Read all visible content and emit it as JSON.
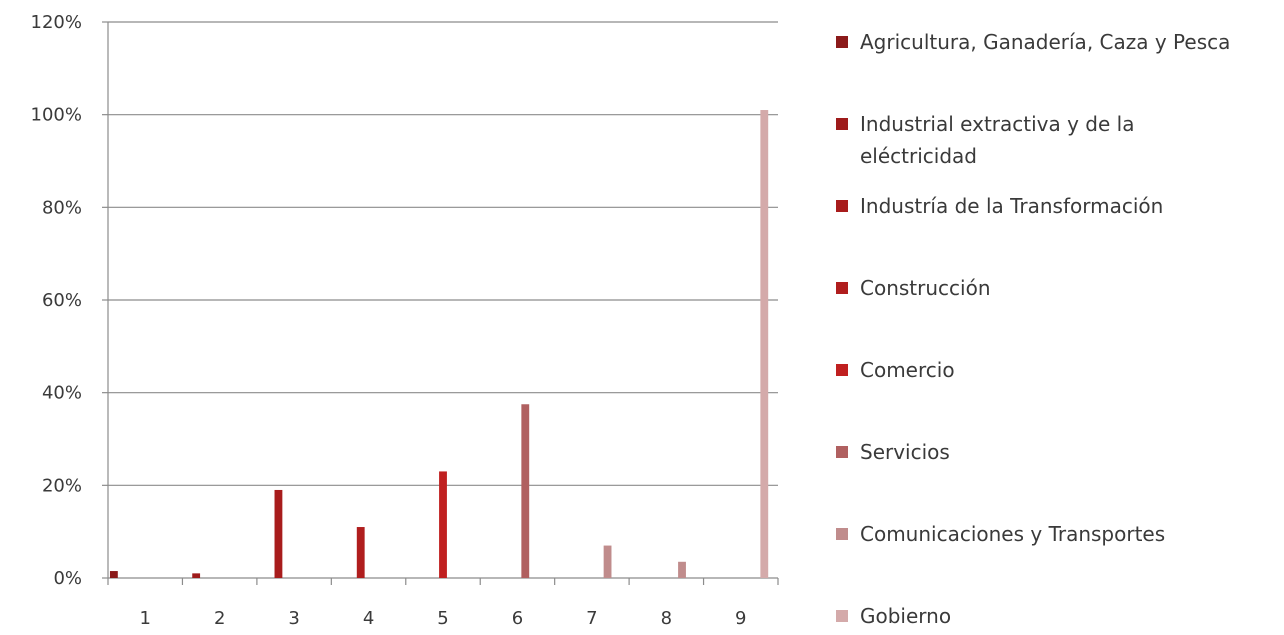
{
  "chart_data": {
    "type": "bar",
    "title": "",
    "xlabel": "",
    "ylabel": "",
    "ylim": [
      0,
      1.2
    ],
    "y_ticks": [
      "0%",
      "20%",
      "40%",
      "60%",
      "80%",
      "100%",
      "120%"
    ],
    "y_tick_values": [
      0,
      0.2,
      0.4,
      0.6,
      0.8,
      1.0,
      1.2
    ],
    "categories": [
      "1",
      "2",
      "3",
      "4",
      "5",
      "6",
      "7",
      "8",
      "9"
    ],
    "grid": true,
    "legend_position": "right",
    "series": [
      {
        "name": "Agricultura, Ganadería, Caza y Pesca",
        "color": "#8b1a1a",
        "values": [
          0.015,
          0,
          0,
          0,
          0,
          0,
          0,
          0,
          0
        ]
      },
      {
        "name": "Industrial extractiva y de la eléctricidad",
        "color": "#9e1b1b",
        "values": [
          0,
          0.01,
          0,
          0,
          0,
          0,
          0,
          0,
          0
        ]
      },
      {
        "name": "Industría de la Transformación",
        "color": "#a81c1c",
        "values": [
          0,
          0,
          0.19,
          0,
          0,
          0,
          0,
          0,
          0
        ]
      },
      {
        "name": "Construcción",
        "color": "#b01e1e",
        "values": [
          0,
          0,
          0,
          0.11,
          0,
          0,
          0,
          0,
          0
        ]
      },
      {
        "name": "Comercio",
        "color": "#c02020",
        "values": [
          0,
          0,
          0,
          0,
          0.23,
          0,
          0,
          0,
          0
        ]
      },
      {
        "name": "Servicios",
        "color": "#b06060",
        "values": [
          0,
          0,
          0,
          0,
          0,
          0.375,
          0,
          0,
          0
        ]
      },
      {
        "name": "Comunicaciones y Transportes",
        "color": "#c08c8c",
        "values": [
          0,
          0,
          0,
          0,
          0,
          0,
          0.07,
          0.035,
          0
        ]
      },
      {
        "name": "Gobierno",
        "color": "#d4aaaa",
        "values": [
          0,
          0,
          0,
          0,
          0,
          0,
          0,
          0,
          1.01
        ]
      }
    ],
    "legend_lines": [
      [
        "Agricultura, Ganadería, Caza y Pesca"
      ],
      [
        "Industrial extractiva y de la",
        "eléctricidad"
      ],
      [
        "Industría de la Transformación"
      ],
      [
        "Construcción"
      ],
      [
        "Comercio"
      ],
      [
        "Servicios"
      ],
      [
        "Comunicaciones y Transportes"
      ],
      [
        "Gobierno"
      ]
    ]
  }
}
